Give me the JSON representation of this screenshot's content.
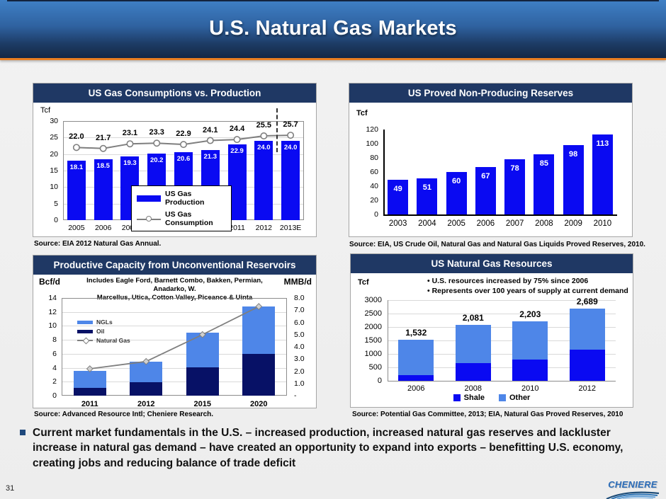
{
  "slide": {
    "title": "U.S. Natural Gas Markets",
    "page_number": "31",
    "logo_text": "CHENIERE",
    "bullet_text": "Current market fundamentals in the U.S. – increased production, increased natural gas reserves and lackluster increase in natural gas demand – have created an opportunity to expand into exports – benefitting U.S. economy, creating jobs and reducing balance of trade deficit"
  },
  "colors": {
    "bright_blue": "#0a0af2",
    "medium_blue": "#4e86e8",
    "dark_navy": "#071166",
    "line_gray": "#7f7f7f",
    "title_bar_bg": "#1f3864",
    "header_orange": "#e87e22"
  },
  "chart_data": [
    {
      "id": "consumption-vs-production",
      "type": "bar+line",
      "title": "US Gas Consumptions vs. Production",
      "unit": "Tcf",
      "categories": [
        "2005",
        "2006",
        "2007",
        "2008",
        "2009",
        "2010",
        "2011",
        "2012",
        "2013E"
      ],
      "bars": {
        "name": "US Gas Production",
        "values": [
          18.1,
          18.5,
          19.3,
          20.2,
          20.6,
          21.3,
          22.9,
          24.0,
          24.0
        ]
      },
      "line": {
        "name": "US Gas Consumption",
        "values": [
          22.0,
          21.7,
          23.1,
          23.3,
          22.9,
          24.1,
          24.4,
          25.5,
          25.7
        ]
      },
      "ylim": [
        0,
        30
      ],
      "yticks": [
        0,
        5,
        10,
        15,
        20,
        25,
        30
      ],
      "grid": true,
      "legend_position": "center-inside",
      "source": "Source: EIA 2012 Natural Gas Annual."
    },
    {
      "id": "proved-non-producing-reserves",
      "type": "bar",
      "title": "US Proved Non-Producing Reserves",
      "unit": "Tcf",
      "categories": [
        "2003",
        "2004",
        "2005",
        "2006",
        "2007",
        "2008",
        "2009",
        "2010"
      ],
      "values": [
        49,
        51,
        60,
        67,
        78,
        85,
        98,
        113
      ],
      "ylim": [
        0,
        120
      ],
      "yticks": [
        0,
        20,
        40,
        60,
        80,
        100,
        120
      ],
      "grid": false,
      "source": "Source: EIA, US Crude Oil, Natural Gas and Natural Gas Liquids Proved Reserves, 2010."
    },
    {
      "id": "productive-capacity-unconventional",
      "type": "stacked-bar+line",
      "title": "Productive Capacity from Unconventional Reservoirs",
      "subtitle_lines": [
        "Includes Eagle Ford, Barnett Combo, Bakken, Permian, Anadarko, W.",
        "Marcellus, Utica, Cotton Valley, Piceance & Uinta"
      ],
      "left_unit": "Bcf/d",
      "right_unit": "MMB/d",
      "categories": [
        "2011",
        "2012",
        "2015",
        "2020"
      ],
      "series": [
        {
          "name": "Oil",
          "values": [
            1.1,
            1.9,
            4.1,
            6.0
          ]
        },
        {
          "name": "NGLs",
          "values": [
            2.5,
            3.0,
            4.9,
            6.8
          ]
        }
      ],
      "line": {
        "name": "Natural Gas",
        "axis": "right",
        "values": [
          2.2,
          2.8,
          5.0,
          7.3
        ]
      },
      "left_ylim": [
        0,
        14
      ],
      "left_yticks": [
        0,
        2,
        4,
        6,
        8,
        10,
        12,
        14
      ],
      "right_ylim": [
        0,
        8
      ],
      "right_yticks": [
        8,
        7,
        6,
        5,
        4,
        3,
        2,
        1,
        0
      ],
      "right_ytick_labels": [
        "8.0",
        "7.0",
        "6.0",
        "5.0",
        "4.0",
        "3.0",
        "2.0",
        "1.0",
        "-"
      ],
      "grid": true,
      "legend_position": "left-inside",
      "source": "Source: Advanced Resource Intl; Cheniere Research."
    },
    {
      "id": "natural-gas-resources",
      "type": "stacked-bar",
      "title": "US Natural Gas Resources",
      "unit": "Tcf",
      "notes": [
        "U.S. resources increased by 75% since 2006",
        "Represents over 100 years of supply at current demand"
      ],
      "categories": [
        "2006",
        "2008",
        "2010",
        "2012"
      ],
      "series": [
        {
          "name": "Shale",
          "values": [
            200,
            650,
            780,
            1150
          ]
        },
        {
          "name": "Other",
          "values": [
            1332,
            1431,
            1423,
            1539
          ]
        }
      ],
      "totals": [
        "1,532",
        "2,081",
        "2,203",
        "2,689"
      ],
      "ylim": [
        0,
        3000
      ],
      "yticks": [
        0,
        500,
        1000,
        1500,
        2000,
        2500,
        3000
      ],
      "grid": true,
      "legend_position": "bottom-center",
      "source": "Source: Potential Gas Committee, 2013; EIA, Natural Gas Proved Reserves, 2010"
    }
  ]
}
